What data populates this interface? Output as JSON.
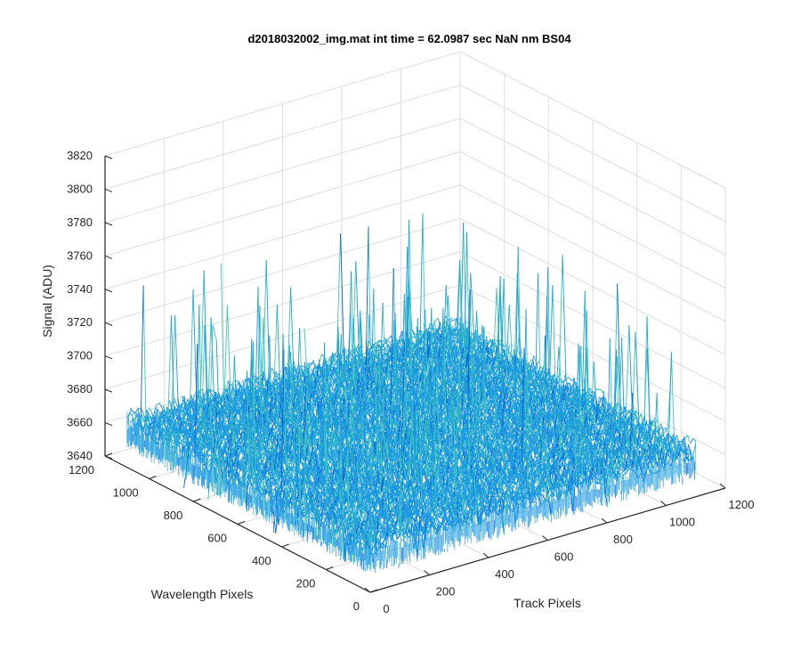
{
  "chart_data": {
    "type": "surface",
    "title": "d2018032002_img.mat int time = 62.0987 sec  NaN nm BS04",
    "xlabel": "Track Pixels",
    "ylabel": "Wavelength Pixels",
    "zlabel": "Signal (ADU)",
    "xlim": [
      0,
      1200
    ],
    "ylim": [
      0,
      1200
    ],
    "zlim": [
      3640,
      3820
    ],
    "x_ticks": [
      "0",
      "200",
      "400",
      "600",
      "800",
      "1000",
      "1200"
    ],
    "y_ticks": [
      "0",
      "200",
      "400",
      "600",
      "800",
      "1000",
      "1200"
    ],
    "z_ticks": [
      "3640",
      "3660",
      "3680",
      "3700",
      "3720",
      "3740",
      "3760",
      "3780",
      "3800",
      "3820"
    ],
    "grid": true,
    "data_extent": {
      "x": [
        0,
        1100
      ],
      "y": [
        0,
        1100
      ]
    },
    "signal": {
      "mean": 3668,
      "noise_min": 3645,
      "noise_max": 3755
    },
    "colors": {
      "low": "#0a5fd6",
      "mid": "#1a9be0",
      "high": "#3fc5b8",
      "axis": "#262626",
      "grid": "#dedede"
    }
  }
}
